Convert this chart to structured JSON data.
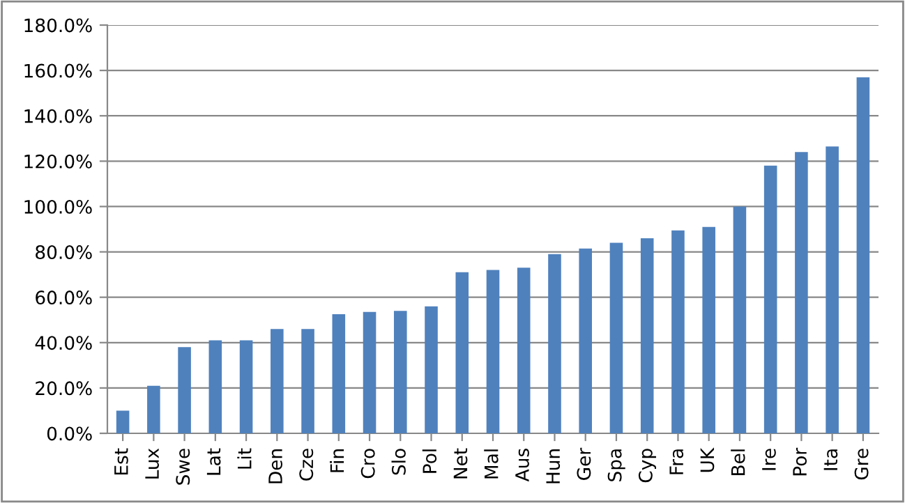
{
  "chart_data": {
    "type": "bar",
    "categories": [
      "Est",
      "Lux",
      "Swe",
      "Lat",
      "Lit",
      "Den",
      "Cze",
      "Fin",
      "Cro",
      "Slo",
      "Pol",
      "Net",
      "Mal",
      "Aus",
      "Hun",
      "Ger",
      "Spa",
      "Cyp",
      "Fra",
      "UK",
      "Bel",
      "Ire",
      "Por",
      "Ita",
      "Gre"
    ],
    "values": [
      10,
      21,
      38,
      41,
      41,
      46,
      46,
      52.5,
      53.5,
      54,
      56,
      71,
      72,
      73,
      79,
      81.5,
      84,
      86,
      89.5,
      91,
      100,
      118,
      124,
      126.5,
      157
    ],
    "color": "#4f81bd",
    "ylim": [
      0,
      180
    ],
    "yticks": [
      {
        "value": 0,
        "label": "0.0%"
      },
      {
        "value": 20,
        "label": "20.0%"
      },
      {
        "value": 40,
        "label": "40.0%"
      },
      {
        "value": 60,
        "label": "60.0%"
      },
      {
        "value": 80,
        "label": "80.0%"
      },
      {
        "value": 100,
        "label": "100.0%"
      },
      {
        "value": 120,
        "label": "120.0%"
      },
      {
        "value": 140,
        "label": "140.0%"
      },
      {
        "value": 160,
        "label": "160.0%"
      },
      {
        "value": 180,
        "label": "180.0%"
      }
    ],
    "grid": "y"
  }
}
